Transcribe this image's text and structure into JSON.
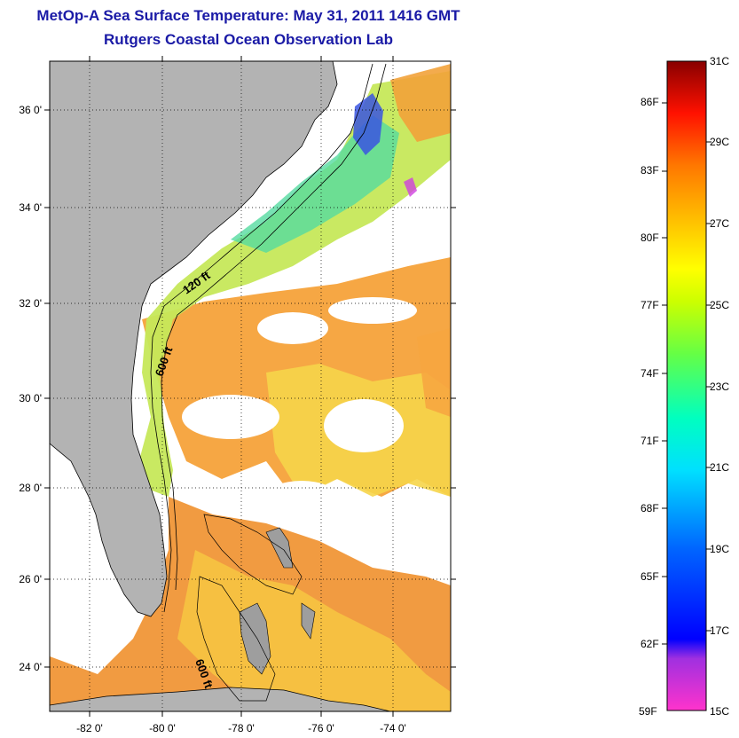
{
  "title": "MetOp-A Sea Surface Temperature:  May 31, 2011 1416 GMT",
  "subtitle": "Rutgers Coastal Ocean Observation Lab",
  "map": {
    "lat_ticks": [
      "36 0'",
      "34 0'",
      "32 0'",
      "30 0'",
      "28 0'",
      "26 0'",
      "24 0'"
    ],
    "lon_ticks": [
      "-82 0'",
      "-80 0'",
      "-78 0'",
      "-76 0'",
      "-74 0'"
    ],
    "contour_labels": [
      "120 ft",
      "600 ft",
      "600 ft"
    ],
    "colors": {
      "land": "#b3b3b3",
      "cloud": "#ffffff",
      "warm": "#f29a2e",
      "mild": "#f6d23a",
      "cool": "#37d6b0"
    }
  },
  "colorbar": {
    "fahrenheit": [
      "86F",
      "83F",
      "80F",
      "77F",
      "74F",
      "71F",
      "68F",
      "65F",
      "62F",
      "59F"
    ],
    "celsius": [
      "31C",
      "29C",
      "27C",
      "25C",
      "23C",
      "21C",
      "19C",
      "17C",
      "15C"
    ],
    "range_c": [
      15,
      31
    ],
    "colors": [
      "#ff33cc",
      "#7a1fd0",
      "#0000ff",
      "#0066ff",
      "#00ccff",
      "#00ffcc",
      "#33ff66",
      "#aaff00",
      "#ffff00",
      "#ffcc00",
      "#ff9900",
      "#ff5500",
      "#ff0000",
      "#990000"
    ]
  }
}
